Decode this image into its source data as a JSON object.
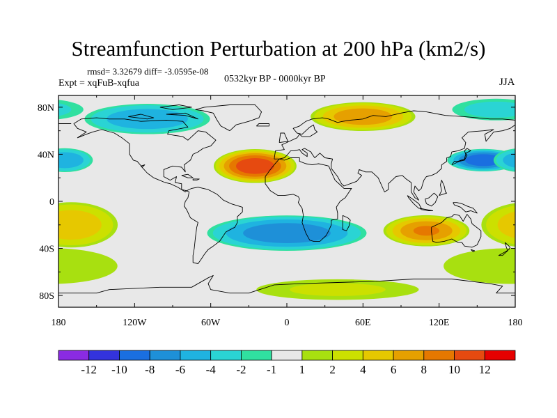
{
  "title": "Streamfunction Perturbation at 200 hPa (km2/s)",
  "stats": "rmsd= 3.32679 diff= -3.0595e-08",
  "experiment": "Expt = xqFuB-xqfua",
  "period": "0532kyr BP - 0000kyr BP",
  "season": "JJA",
  "colors": {
    "land_outline": "#000000",
    "frame": "#000000",
    "background": "#ffffff"
  },
  "chart_data": {
    "type": "heatmap",
    "title": "Streamfunction Perturbation at 200 hPa (km2/s)",
    "units": "km2/s",
    "projection": "cylindrical equidistant",
    "xlim": [
      -180,
      180
    ],
    "ylim": [
      -90,
      90
    ],
    "x_ticks": [
      -180,
      -120,
      -60,
      0,
      60,
      120,
      180
    ],
    "x_tick_labels": [
      "180",
      "120W",
      "60W",
      "0",
      "60E",
      "120E",
      "180"
    ],
    "y_ticks": [
      80,
      40,
      0,
      -40,
      -80
    ],
    "y_tick_labels": [
      "80N",
      "40N",
      "0",
      "40S",
      "80S"
    ],
    "colorbar": {
      "levels": [
        -12,
        -10,
        -8,
        -6,
        -4,
        -2,
        -1,
        1,
        2,
        4,
        6,
        8,
        10,
        12
      ],
      "level_labels": [
        "-12",
        "-10",
        "-8",
        "-6",
        "-4",
        "-2",
        "-1",
        "1",
        "2",
        "4",
        "6",
        "8",
        "10",
        "12"
      ],
      "colors": [
        "#8a2be2",
        "#3333dd",
        "#1a6fe0",
        "#1e90d8",
        "#1fb3e0",
        "#2ad4d4",
        "#30e0a0",
        "#e8e8e8",
        "#a8e010",
        "#cce000",
        "#e6c800",
        "#e6a000",
        "#e67800",
        "#e64a10",
        "#e60000"
      ]
    },
    "anomaly_centers": [
      {
        "lon": -25,
        "lat": 30,
        "value": 12,
        "rx": 32,
        "ry": 14
      },
      {
        "lon": 60,
        "lat": 72,
        "value": 8,
        "rx": 42,
        "ry": 12
      },
      {
        "lon": 110,
        "lat": -25,
        "value": 8.5,
        "rx": 34,
        "ry": 13
      },
      {
        "lon": -170,
        "lat": -20,
        "value": 6,
        "rx": 38,
        "ry": 20
      },
      {
        "lon": 155,
        "lat": 35,
        "value": -10,
        "rx": 28,
        "ry": 9
      },
      {
        "lon": -175,
        "lat": 35,
        "value": -6,
        "rx": 22,
        "ry": 10
      },
      {
        "lon": 0,
        "lat": -27,
        "value": -8,
        "rx": 65,
        "ry": 15
      },
      {
        "lon": -110,
        "lat": 70,
        "value": -6,
        "rx": 52,
        "ry": 13
      },
      {
        "lon": 175,
        "lat": -55,
        "value": 2,
        "rx": 70,
        "ry": 20
      },
      {
        "lon": 40,
        "lat": -75,
        "value": 2.5,
        "rx": 80,
        "ry": 10
      },
      {
        "lon": 165,
        "lat": 78,
        "value": -3,
        "rx": 40,
        "ry": 10
      }
    ]
  }
}
